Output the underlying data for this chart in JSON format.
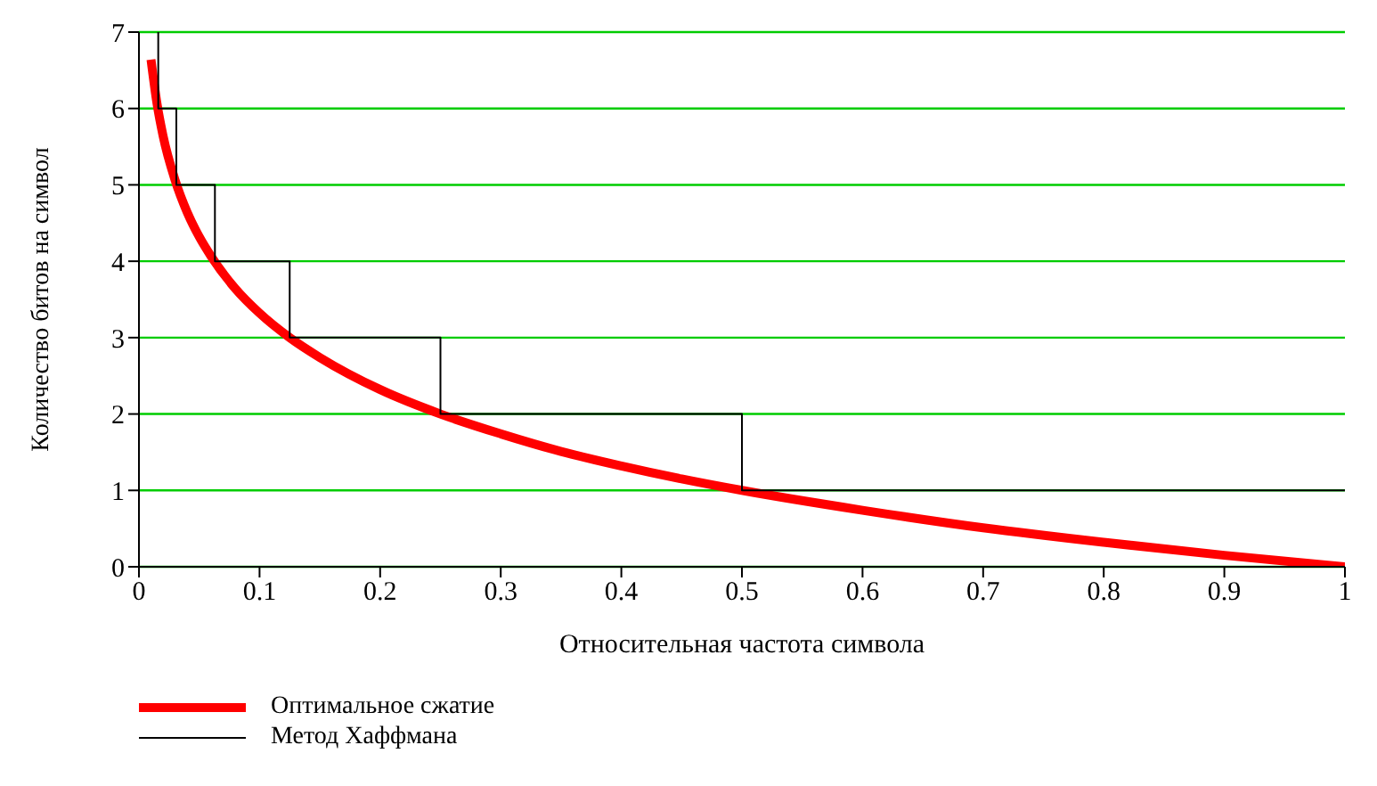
{
  "chart_data": {
    "type": "line",
    "xlabel": "Относительная частота символа",
    "ylabel": "Количество битов на символ",
    "xlim": [
      0,
      1
    ],
    "xticks": [
      0,
      0.1,
      0.2,
      0.3,
      0.4,
      0.5,
      0.6,
      0.7,
      0.8,
      0.9,
      1
    ],
    "ylim": [
      0,
      7
    ],
    "yticks": [
      0,
      1,
      2,
      3,
      4,
      5,
      6,
      7
    ],
    "grid": "y",
    "legend": "bottom left",
    "marker": "none",
    "line_style": "solid",
    "series": [
      {
        "name": "Оптимальное сжатие",
        "color": "#ff0000",
        "type": "line",
        "x": [
          0.01,
          0.015,
          0.02,
          0.03,
          0.04,
          0.05,
          0.06,
          0.08,
          0.1,
          0.125,
          0.15,
          0.2,
          0.25,
          0.3,
          0.35,
          0.4,
          0.45,
          0.5,
          0.6,
          0.7,
          0.8,
          0.9,
          1
        ],
        "values": [
          6.64,
          6.06,
          5.64,
          5.06,
          4.64,
          4.32,
          4.06,
          3.64,
          3.32,
          3.0,
          2.74,
          2.32,
          2.0,
          1.74,
          1.51,
          1.32,
          1.15,
          1.0,
          0.74,
          0.51,
          0.32,
          0.15,
          0
        ]
      },
      {
        "name": "Метод Хаффмана",
        "color": "#000000",
        "type": "step",
        "x": [
          0.016,
          0.031,
          0.063,
          0.125,
          0.25,
          0.5,
          1
        ],
        "values": [
          7,
          6,
          5,
          4,
          3,
          2,
          1
        ]
      }
    ]
  }
}
